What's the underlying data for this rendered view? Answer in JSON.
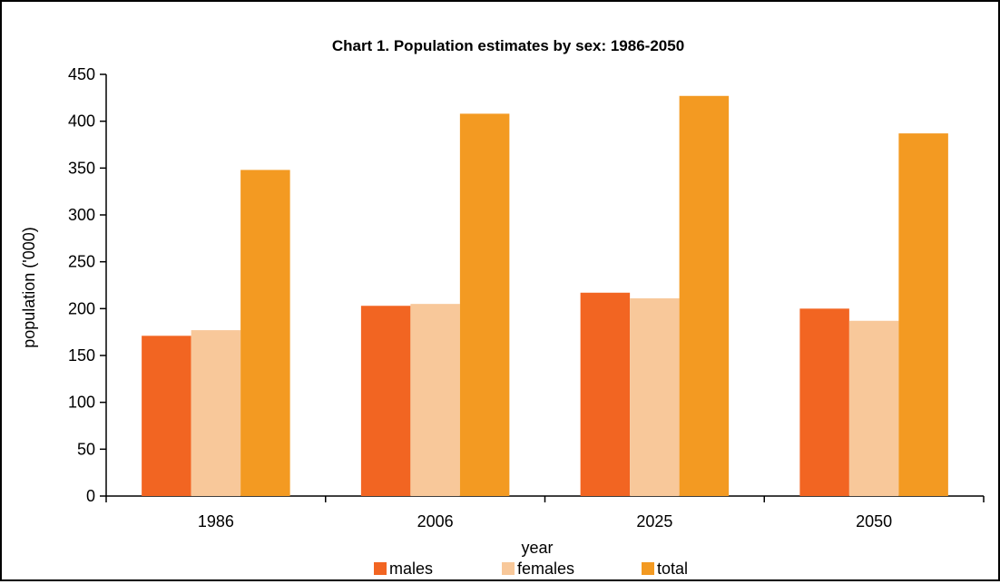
{
  "chart_data": {
    "type": "bar",
    "title": "Chart 1.  Population estimates by sex: 1986-2050",
    "xlabel": "year",
    "ylabel": "population ('000)",
    "categories": [
      "1986",
      "2006",
      "2025",
      "2050"
    ],
    "ylim": [
      0,
      450
    ],
    "yticks": [
      0,
      50,
      100,
      150,
      200,
      250,
      300,
      350,
      400,
      450
    ],
    "series": [
      {
        "name": "males",
        "color": "#F26522",
        "values": [
          171,
          203,
          217,
          200
        ]
      },
      {
        "name": "females",
        "color": "#F8C89A",
        "values": [
          177,
          205,
          211,
          187
        ]
      },
      {
        "name": "total",
        "color": "#F39A22",
        "values": [
          348,
          408,
          427,
          387
        ]
      }
    ],
    "grid": false,
    "legend": "bottom"
  }
}
